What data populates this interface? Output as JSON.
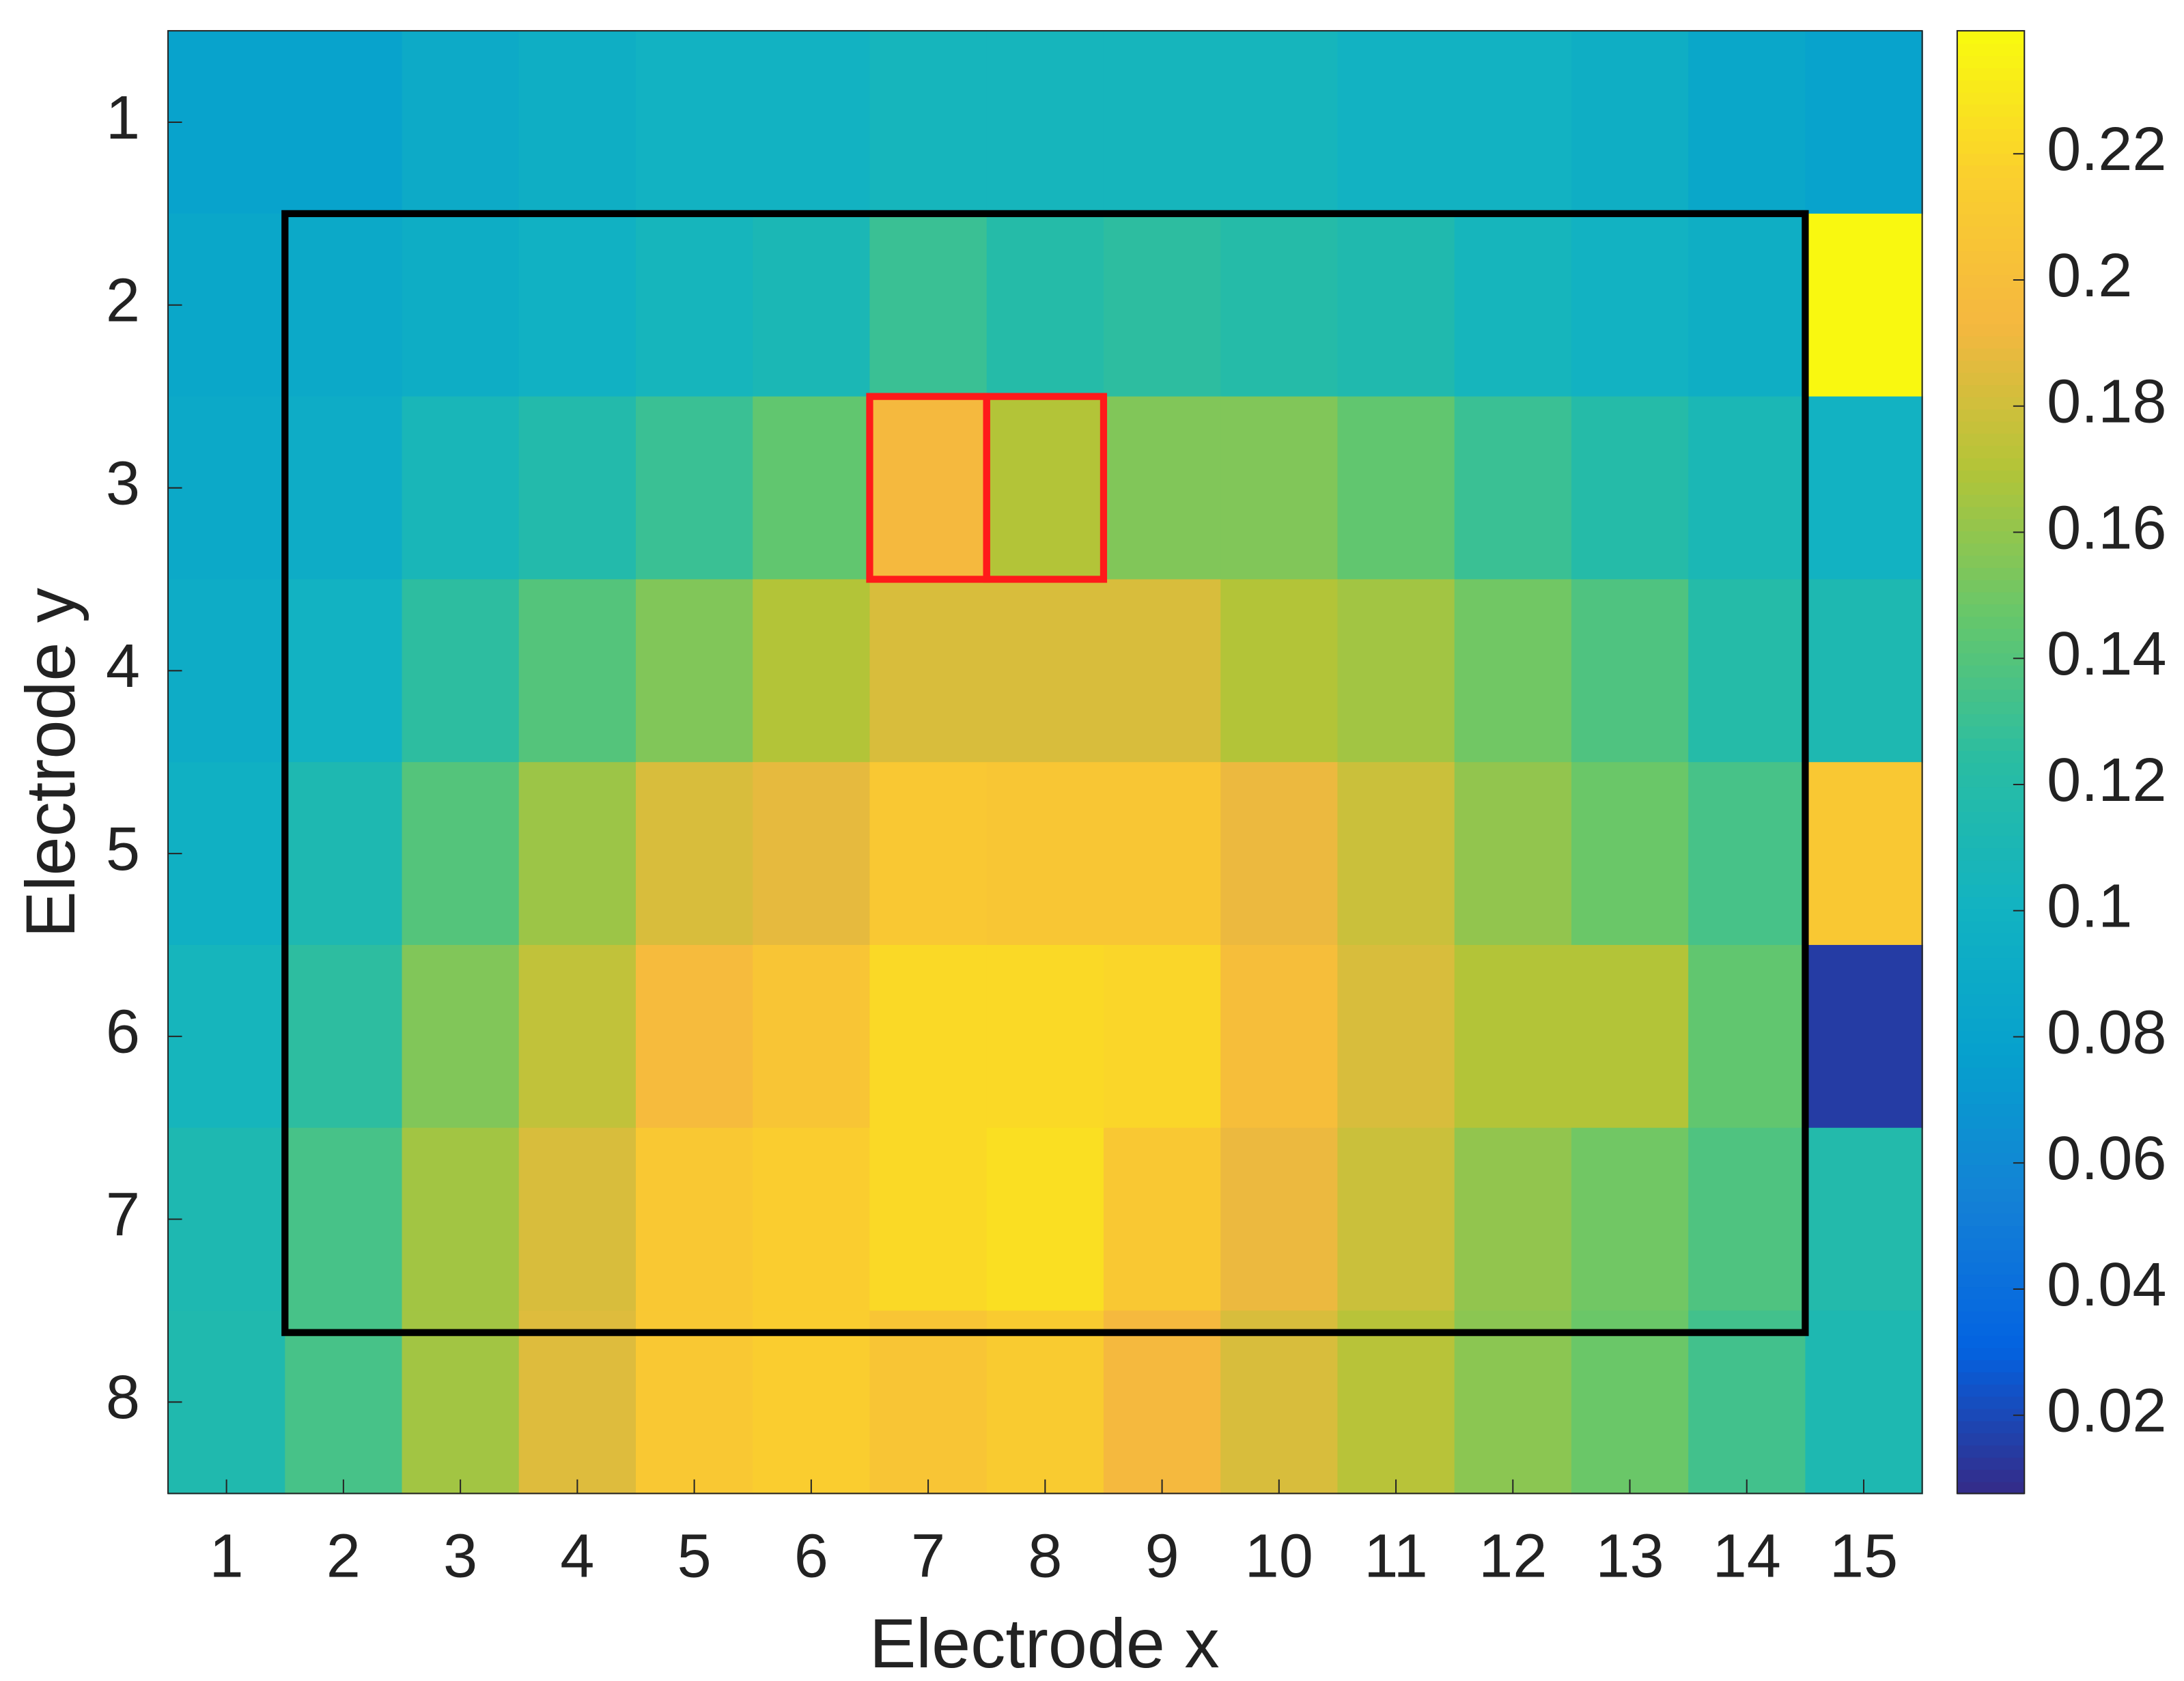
{
  "chart_data": {
    "type": "heatmap",
    "xlabel": "Electrode x",
    "ylabel": "Electrode y",
    "x": [
      1,
      2,
      3,
      4,
      5,
      6,
      7,
      8,
      9,
      10,
      11,
      12,
      13,
      14,
      15
    ],
    "y": [
      1,
      2,
      3,
      4,
      5,
      6,
      7,
      8
    ],
    "xlim": [
      0.5,
      15.5
    ],
    "ylim": [
      0.5,
      8.5
    ],
    "y_reversed": true,
    "xticks": [
      1,
      2,
      3,
      4,
      5,
      6,
      7,
      8,
      9,
      10,
      11,
      12,
      13,
      14,
      15
    ],
    "yticks": [
      1,
      2,
      3,
      4,
      5,
      6,
      7,
      8
    ],
    "colormap": "parula",
    "clim": [
      0.0076,
      0.2395
    ],
    "cticks": [
      0.02,
      0.04,
      0.06,
      0.08,
      0.1,
      0.12,
      0.14,
      0.16,
      0.18,
      0.2,
      0.22
    ],
    "values": [
      [
        0.08,
        0.08,
        0.09,
        0.095,
        0.1,
        0.1,
        0.105,
        0.105,
        0.105,
        0.105,
        0.1,
        0.1,
        0.095,
        0.085,
        0.08
      ],
      [
        0.085,
        0.088,
        0.093,
        0.098,
        0.105,
        0.11,
        0.13,
        0.12,
        0.125,
        0.12,
        0.115,
        0.105,
        0.1,
        0.095,
        0.238
      ],
      [
        0.088,
        0.092,
        0.108,
        0.118,
        0.13,
        0.145,
        0.195,
        0.17,
        0.155,
        0.155,
        0.145,
        0.13,
        0.12,
        0.11,
        0.1
      ],
      [
        0.092,
        0.1,
        0.125,
        0.14,
        0.155,
        0.17,
        0.183,
        0.183,
        0.183,
        0.17,
        0.165,
        0.15,
        0.138,
        0.12,
        0.113
      ],
      [
        0.097,
        0.113,
        0.14,
        0.163,
        0.183,
        0.188,
        0.21,
        0.208,
        0.208,
        0.19,
        0.178,
        0.16,
        0.148,
        0.135,
        0.21
      ],
      [
        0.105,
        0.125,
        0.155,
        0.175,
        0.197,
        0.207,
        0.222,
        0.222,
        0.22,
        0.2,
        0.183,
        0.17,
        0.17,
        0.145,
        0.015
      ],
      [
        0.113,
        0.135,
        0.165,
        0.183,
        0.21,
        0.215,
        0.222,
        0.225,
        0.21,
        0.19,
        0.178,
        0.16,
        0.15,
        0.138,
        0.118
      ],
      [
        0.115,
        0.135,
        0.165,
        0.185,
        0.21,
        0.215,
        0.207,
        0.213,
        0.195,
        0.183,
        0.172,
        0.158,
        0.148,
        0.133,
        0.113
      ]
    ],
    "boxes": [
      {
        "color": "#000000",
        "x": [
          1.5,
          14.5
        ],
        "y": [
          1.5,
          7.62
        ]
      },
      {
        "color": "#ff1a1a",
        "x": [
          6.5,
          7.5
        ],
        "y": [
          2.5,
          3.5
        ]
      },
      {
        "color": "#ff1a1a",
        "x": [
          7.5,
          8.5
        ],
        "y": [
          2.5,
          3.5
        ]
      }
    ]
  }
}
